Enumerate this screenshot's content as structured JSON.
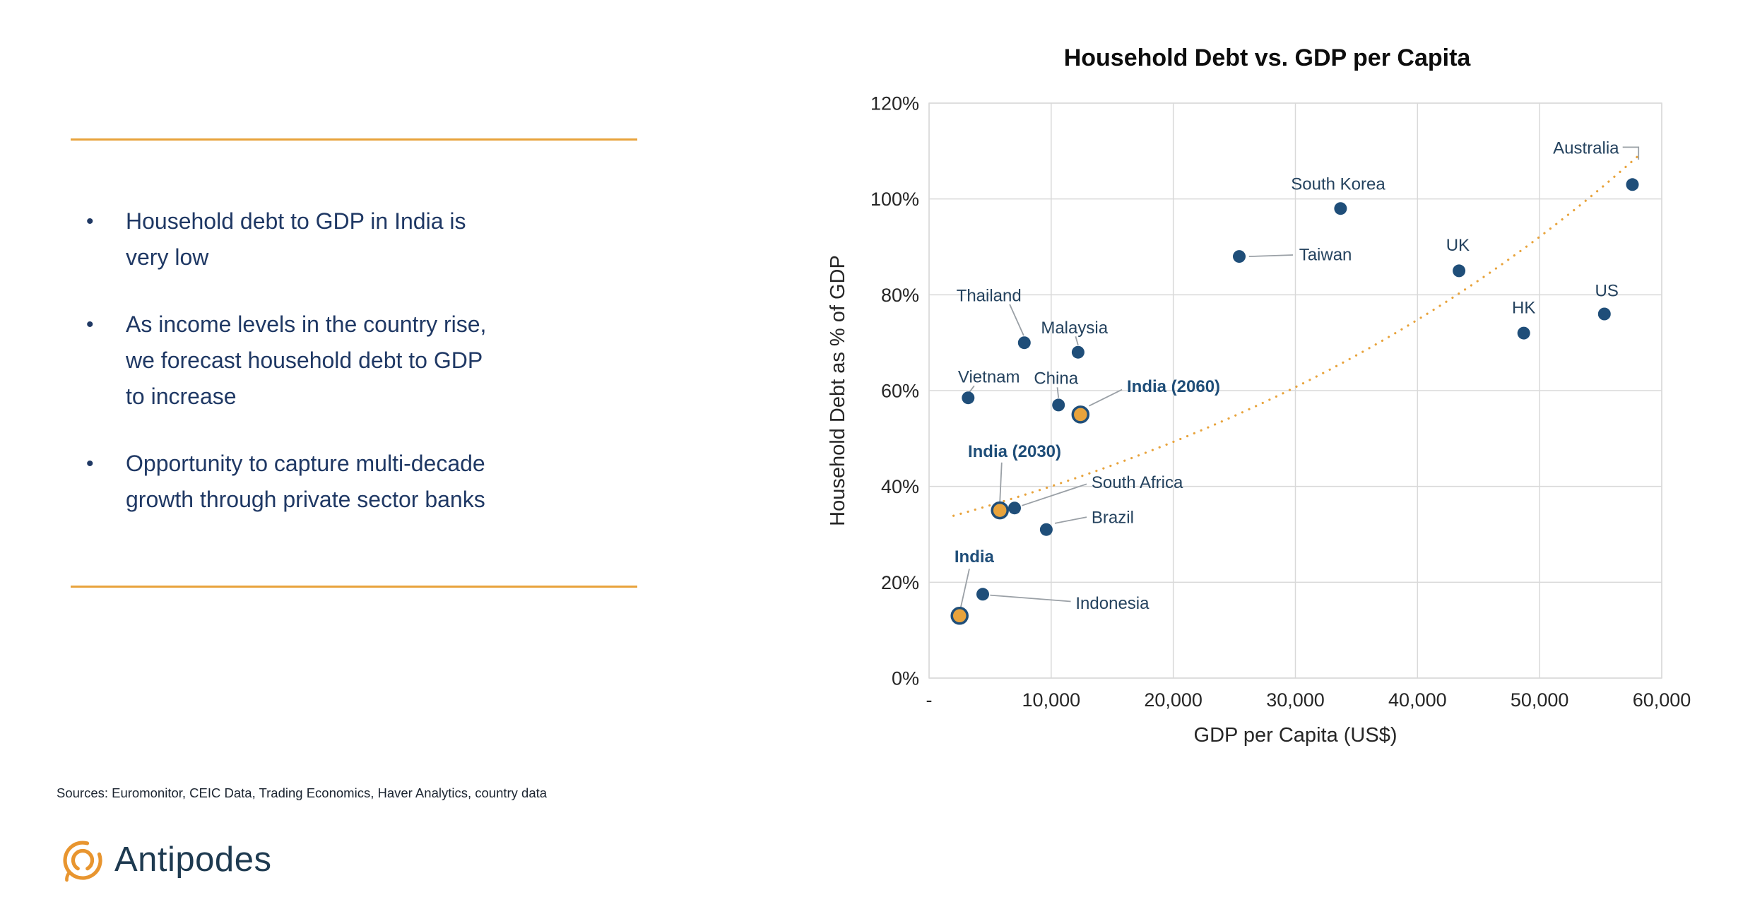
{
  "colors": {
    "accent_orange": "#E8A33C",
    "navy_text": "#1F3864",
    "dot_navy": "#1F4E79",
    "grid": "#D9D9D9",
    "leader": "#9aa0a6"
  },
  "panel": {
    "bullets": [
      [
        "Household debt to GDP in India is",
        "very low"
      ],
      [
        "As income levels in the country rise,",
        "we forecast household debt to GDP",
        "to increase"
      ],
      [
        "Opportunity to capture multi-decade",
        "growth through private sector banks"
      ]
    ],
    "sources": "Sources: Euromonitor, CEIC Data, Trading Economics, Haver Analytics, country data",
    "logo_text": "Antipodes"
  },
  "chart_data": {
    "type": "scatter",
    "title": "Household Debt vs. GDP per Capita",
    "xlabel": "GDP per Capita (US$)",
    "ylabel": "Household Debt as % of GDP",
    "xlim": [
      0,
      60000
    ],
    "ylim": [
      0,
      120
    ],
    "grid": true,
    "legend": "none",
    "x_ticks": [
      {
        "v": 0,
        "label": "-"
      },
      {
        "v": 10000,
        "label": "10,000"
      },
      {
        "v": 20000,
        "label": "20,000"
      },
      {
        "v": 30000,
        "label": "30,000"
      },
      {
        "v": 40000,
        "label": "40,000"
      },
      {
        "v": 50000,
        "label": "50,000"
      },
      {
        "v": 60000,
        "label": "60,000"
      }
    ],
    "y_ticks": [
      {
        "v": 0,
        "label": "0%"
      },
      {
        "v": 20,
        "label": "20%"
      },
      {
        "v": 40,
        "label": "40%"
      },
      {
        "v": 60,
        "label": "60%"
      },
      {
        "v": 80,
        "label": "80%"
      },
      {
        "v": 100,
        "label": "100%"
      },
      {
        "v": 120,
        "label": "120%"
      }
    ],
    "trend": {
      "style": "dotted",
      "color": "#E8A33C",
      "formula": "y = 32.5 * exp(x / 48000)",
      "a": 32.5,
      "k": 48000,
      "x_start": 2000,
      "x_end": 58500
    },
    "points": [
      {
        "label": "India",
        "x": 2500,
        "y": 13,
        "highlight": true,
        "bold": true,
        "anchor": "middle",
        "label_x": 3700,
        "label_y": 25.5,
        "leader": [
          [
            3300,
            22.8
          ],
          [
            2600,
            14.8
          ]
        ]
      },
      {
        "label": "Indonesia",
        "x": 4400,
        "y": 17.5,
        "highlight": false,
        "bold": false,
        "anchor": "start",
        "label_x": 12000,
        "label_y": 15.8,
        "leader": [
          [
            5000,
            17.3
          ],
          [
            11600,
            16
          ]
        ]
      },
      {
        "label": "India (2030)",
        "x": 5800,
        "y": 35,
        "highlight": true,
        "bold": true,
        "anchor": "middle",
        "label_x": 7000,
        "label_y": 47.5,
        "leader": [
          [
            5950,
            45
          ],
          [
            5800,
            36.8
          ]
        ]
      },
      {
        "label": "South Africa",
        "x": 7000,
        "y": 35.5,
        "highlight": false,
        "bold": false,
        "anchor": "start",
        "label_x": 13300,
        "label_y": 41,
        "leader": [
          [
            7600,
            36
          ],
          [
            12900,
            40.5
          ]
        ]
      },
      {
        "label": "Brazil",
        "x": 9600,
        "y": 31,
        "highlight": false,
        "bold": false,
        "anchor": "start",
        "label_x": 13300,
        "label_y": 33.7,
        "leader": [
          [
            10300,
            32.3
          ],
          [
            12900,
            33.6
          ]
        ]
      },
      {
        "label": "Vietnam",
        "x": 3200,
        "y": 58.5,
        "highlight": false,
        "bold": false,
        "anchor": "middle",
        "label_x": 4900,
        "label_y": 63,
        "leader": [
          [
            3700,
            61
          ],
          [
            3250,
            59.5
          ]
        ]
      },
      {
        "label": "China",
        "x": 10600,
        "y": 57,
        "highlight": false,
        "bold": false,
        "anchor": "middle",
        "label_x": 10400,
        "label_y": 62.7,
        "leader": [
          [
            10500,
            60.7
          ],
          [
            10600,
            58.5
          ]
        ]
      },
      {
        "label": "India (2060)",
        "x": 12400,
        "y": 55,
        "highlight": true,
        "bold": true,
        "anchor": "start",
        "label_x": 16200,
        "label_y": 61,
        "leader": [
          [
            13100,
            56.8
          ],
          [
            15800,
            60.2
          ]
        ]
      },
      {
        "label": "Thailand",
        "x": 7800,
        "y": 70,
        "highlight": false,
        "bold": false,
        "anchor": "middle",
        "label_x": 4900,
        "label_y": 80,
        "leader": [
          [
            6600,
            78
          ],
          [
            7750,
            71.5
          ]
        ]
      },
      {
        "label": "Malaysia",
        "x": 12200,
        "y": 68,
        "highlight": false,
        "bold": false,
        "anchor": "middle",
        "label_x": 11900,
        "label_y": 73.3,
        "leader": [
          [
            12000,
            71.3
          ],
          [
            12200,
            69.5
          ]
        ]
      },
      {
        "label": "Taiwan",
        "x": 25400,
        "y": 88,
        "highlight": false,
        "bold": false,
        "anchor": "start",
        "label_x": 30300,
        "label_y": 88.5,
        "leader": [
          [
            26200,
            88
          ],
          [
            29800,
            88.3
          ]
        ]
      },
      {
        "label": "South Korea",
        "x": 33700,
        "y": 98,
        "highlight": false,
        "bold": false,
        "anchor": "middle",
        "label_x": 33500,
        "label_y": 103.3
      },
      {
        "label": "UK",
        "x": 43400,
        "y": 85,
        "highlight": false,
        "bold": false,
        "anchor": "middle",
        "label_x": 43300,
        "label_y": 90.5
      },
      {
        "label": "HK",
        "x": 48700,
        "y": 72,
        "highlight": false,
        "bold": false,
        "anchor": "middle",
        "label_x": 48700,
        "label_y": 77.5
      },
      {
        "label": "US",
        "x": 55300,
        "y": 76,
        "highlight": false,
        "bold": false,
        "anchor": "middle",
        "label_x": 55500,
        "label_y": 81
      },
      {
        "label": "Australia",
        "x": 57600,
        "y": 103,
        "highlight": false,
        "bold": false,
        "anchor": "end",
        "label_x": 56500,
        "label_y": 110.8,
        "leader": [
          [
            56800,
            110.8
          ],
          [
            58100,
            110.8
          ],
          [
            58100,
            108.2
          ]
        ]
      }
    ]
  }
}
